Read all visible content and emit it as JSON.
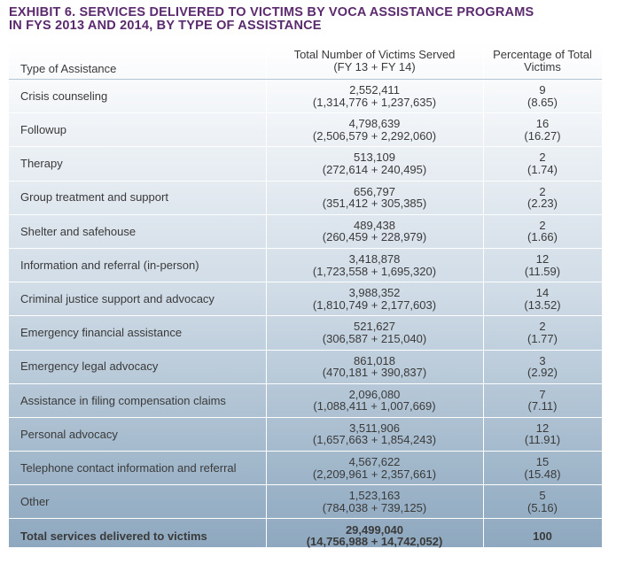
{
  "title_line1": "EXHIBIT 6. SERVICES DELIVERED TO VICTIMS BY VOCA ASSISTANCE PROGRAMS",
  "title_line2": "IN FYs 2013 AND 2014, BY TYPE OF ASSISTANCE",
  "headers": {
    "type": "Type of Assistance",
    "total_line1": "Total Number of Victims Served",
    "total_line2": "(FY 13 + FY 14)",
    "pct_line1": "Percentage of Total",
    "pct_line2": "Victims"
  },
  "rows": [
    {
      "type": "Crisis counseling",
      "total": "2,552,411",
      "breakdown": "(1,314,776 + 1,237,635)",
      "pct": "9",
      "pct_exact": "(8.65)"
    },
    {
      "type": "Followup",
      "total": "4,798,639",
      "breakdown": "(2,506,579 + 2,292,060)",
      "pct": "16",
      "pct_exact": "(16.27)"
    },
    {
      "type": "Therapy",
      "total": "513,109",
      "breakdown": "(272,614 + 240,495)",
      "pct": "2",
      "pct_exact": "(1.74)"
    },
    {
      "type": "Group treatment and support",
      "total": "656,797",
      "breakdown": "(351,412 + 305,385)",
      "pct": "2",
      "pct_exact": "(2.23)"
    },
    {
      "type": "Shelter and safehouse",
      "total": "489,438",
      "breakdown": "(260,459 + 228,979)",
      "pct": "2",
      "pct_exact": "(1.66)"
    },
    {
      "type": "Information and referral (in-person)",
      "total": "3,418,878",
      "breakdown": "(1,723,558 + 1,695,320)",
      "pct": "12",
      "pct_exact": "(11.59)"
    },
    {
      "type": "Criminal justice support and advocacy",
      "total": "3,988,352",
      "breakdown": "(1,810,749 + 2,177,603)",
      "pct": "14",
      "pct_exact": "(13.52)"
    },
    {
      "type": "Emergency financial assistance",
      "total": "521,627",
      "breakdown": "(306,587 + 215,040)",
      "pct": "2",
      "pct_exact": "(1.77)"
    },
    {
      "type": "Emergency legal advocacy",
      "total": "861,018",
      "breakdown": "(470,181 + 390,837)",
      "pct": "3",
      "pct_exact": "(2.92)"
    },
    {
      "type": "Assistance in filing compensation claims",
      "total": "2,096,080",
      "breakdown": "(1,088,411 + 1,007,669)",
      "pct": "7",
      "pct_exact": "(7.11)"
    },
    {
      "type": "Personal advocacy",
      "total": "3,511,906",
      "breakdown": "(1,657,663 + 1,854,243)",
      "pct": "12",
      "pct_exact": "(11.91)"
    },
    {
      "type": "Telephone contact information and referral",
      "total": "4,567,622",
      "breakdown": "(2,209,961 + 2,357,661)",
      "pct": "15",
      "pct_exact": "(15.48)"
    },
    {
      "type": "Other",
      "total": "1,523,163",
      "breakdown": "(784,038 + 739,125)",
      "pct": "5",
      "pct_exact": "(5.16)"
    }
  ],
  "total_row": {
    "type": "Total services delivered to victims",
    "total": "29,499,040",
    "breakdown": "(14,756,988 + 14,742,052)",
    "pct": "100"
  },
  "colors": {
    "title": "#5b2a6e",
    "text": "#3a3a3a",
    "gradient_top": "#ffffff",
    "gradient_bottom": "#8ea8bf"
  }
}
